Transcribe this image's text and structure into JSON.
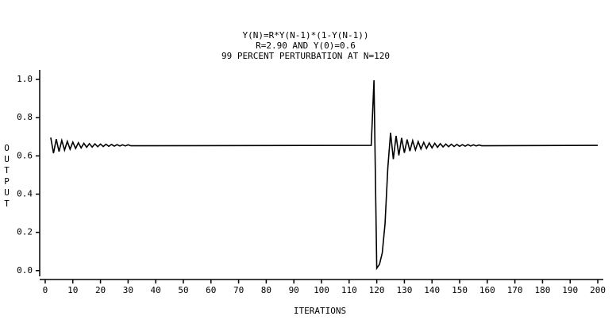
{
  "chart_data": {
    "type": "line",
    "title": "Y(N)=R*Y(N-1)*(1-Y(N-1))",
    "subtitle": "R=2.90 AND Y(0)=0.6",
    "annotation": "99 PERCENT PERTURBATION AT N=120",
    "x_label": "ITERATIONS",
    "y_label": "OUTPUT",
    "color": "#000000",
    "grid": false,
    "xlim": [
      -2,
      202
    ],
    "ylim": [
      -0.03,
      1.05
    ],
    "xticks": [
      0,
      10,
      20,
      30,
      40,
      50,
      60,
      70,
      80,
      90,
      100,
      110,
      120,
      130,
      140,
      150,
      160,
      170,
      180,
      190,
      200
    ],
    "yticks": [
      {
        "value": 0,
        "label": "0.0"
      },
      0.2,
      0.4,
      0.6,
      0.8,
      {
        "value": 1,
        "label": "1.0"
      }
    ],
    "x": [
      2,
      3,
      4,
      5,
      6,
      7,
      8,
      9,
      10,
      11,
      12,
      13,
      14,
      15,
      16,
      17,
      18,
      19,
      20,
      21,
      22,
      23,
      24,
      25,
      26,
      27,
      28,
      29,
      30,
      31,
      118,
      119,
      120,
      121,
      122,
      123,
      124,
      125,
      126,
      127,
      128,
      129,
      130,
      131,
      132,
      133,
      134,
      135,
      136,
      137,
      138,
      139,
      140,
      141,
      142,
      143,
      144,
      145,
      146,
      147,
      148,
      149,
      150,
      151,
      152,
      153,
      154,
      155,
      156,
      157,
      158,
      200
    ],
    "values": [
      0.696,
      0.614,
      0.688,
      0.623,
      0.681,
      0.63,
      0.676,
      0.635,
      0.672,
      0.639,
      0.669,
      0.642,
      0.666,
      0.645,
      0.664,
      0.646,
      0.663,
      0.648,
      0.662,
      0.649,
      0.661,
      0.65,
      0.66,
      0.651,
      0.659,
      0.652,
      0.658,
      0.652,
      0.658,
      0.653,
      0.655,
      0.996,
      0.012,
      0.033,
      0.093,
      0.245,
      0.536,
      0.721,
      0.583,
      0.705,
      0.603,
      0.694,
      0.616,
      0.686,
      0.625,
      0.68,
      0.631,
      0.675,
      0.636,
      0.671,
      0.639,
      0.668,
      0.642,
      0.666,
      0.645,
      0.664,
      0.647,
      0.662,
      0.648,
      0.661,
      0.649,
      0.66,
      0.65,
      0.659,
      0.651,
      0.659,
      0.652,
      0.658,
      0.652,
      0.657,
      0.653,
      0.655
    ]
  }
}
